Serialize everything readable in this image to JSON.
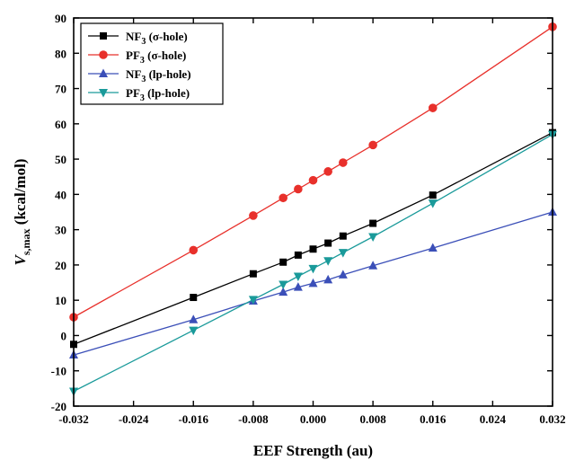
{
  "chart_data": {
    "type": "line",
    "title": "",
    "xlabel": "EEF Strength (au)",
    "ylabel_main": "V",
    "ylabel_sub": "s,max",
    "ylabel_rest": " (kcal/mol)",
    "xlim": [
      -0.032,
      0.032
    ],
    "ylim": [
      -20,
      90
    ],
    "xticks": [
      -0.032,
      -0.024,
      -0.016,
      -0.008,
      0.0,
      0.008,
      0.016,
      0.024,
      0.032
    ],
    "xtick_labels": [
      "-0.032",
      "-0.024",
      "-0.016",
      "-0.008",
      "0.000",
      "0.008",
      "0.016",
      "0.024",
      "0.032"
    ],
    "yticks": [
      -20,
      -10,
      0,
      10,
      20,
      30,
      40,
      50,
      60,
      70,
      80,
      90
    ],
    "ytick_labels": [
      "-20",
      "-10",
      "0",
      "10",
      "20",
      "30",
      "40",
      "50",
      "60",
      "70",
      "80",
      "90"
    ],
    "grid": false,
    "legend_position": "top-left",
    "x": [
      -0.032,
      -0.016,
      -0.008,
      -0.004,
      -0.002,
      0.0,
      0.002,
      0.004,
      0.008,
      0.016,
      0.032
    ],
    "series": [
      {
        "name_main": "NF",
        "name_sub": "3",
        "name_rest": " (σ-hole)",
        "marker": "square",
        "color": "#000000",
        "values": [
          -2.5,
          10.8,
          17.5,
          20.8,
          22.8,
          24.5,
          26.2,
          28.2,
          31.8,
          39.8,
          57.5
        ]
      },
      {
        "name_main": "PF",
        "name_sub": "3",
        "name_rest": " (σ-hole)",
        "marker": "circle",
        "color": "#e8302b",
        "values": [
          5.2,
          24.2,
          34.0,
          39.0,
          41.5,
          44.0,
          46.5,
          49.0,
          54.0,
          64.5,
          87.5
        ]
      },
      {
        "name_main": "NF",
        "name_sub": "3",
        "name_rest": " (lp-hole)",
        "marker": "triangle-up",
        "color": "#3b4fb8",
        "values": [
          -5.5,
          4.5,
          9.8,
          12.3,
          13.7,
          14.8,
          15.8,
          17.2,
          19.8,
          24.8,
          35.0
        ]
      },
      {
        "name_main": "PF",
        "name_sub": "3",
        "name_rest": "  (lp-hole)",
        "marker": "triangle-down",
        "color": "#1a9a9a",
        "values": [
          -15.8,
          1.5,
          10.2,
          14.5,
          16.8,
          19.0,
          21.2,
          23.5,
          28.0,
          37.5,
          57.0
        ]
      }
    ]
  }
}
